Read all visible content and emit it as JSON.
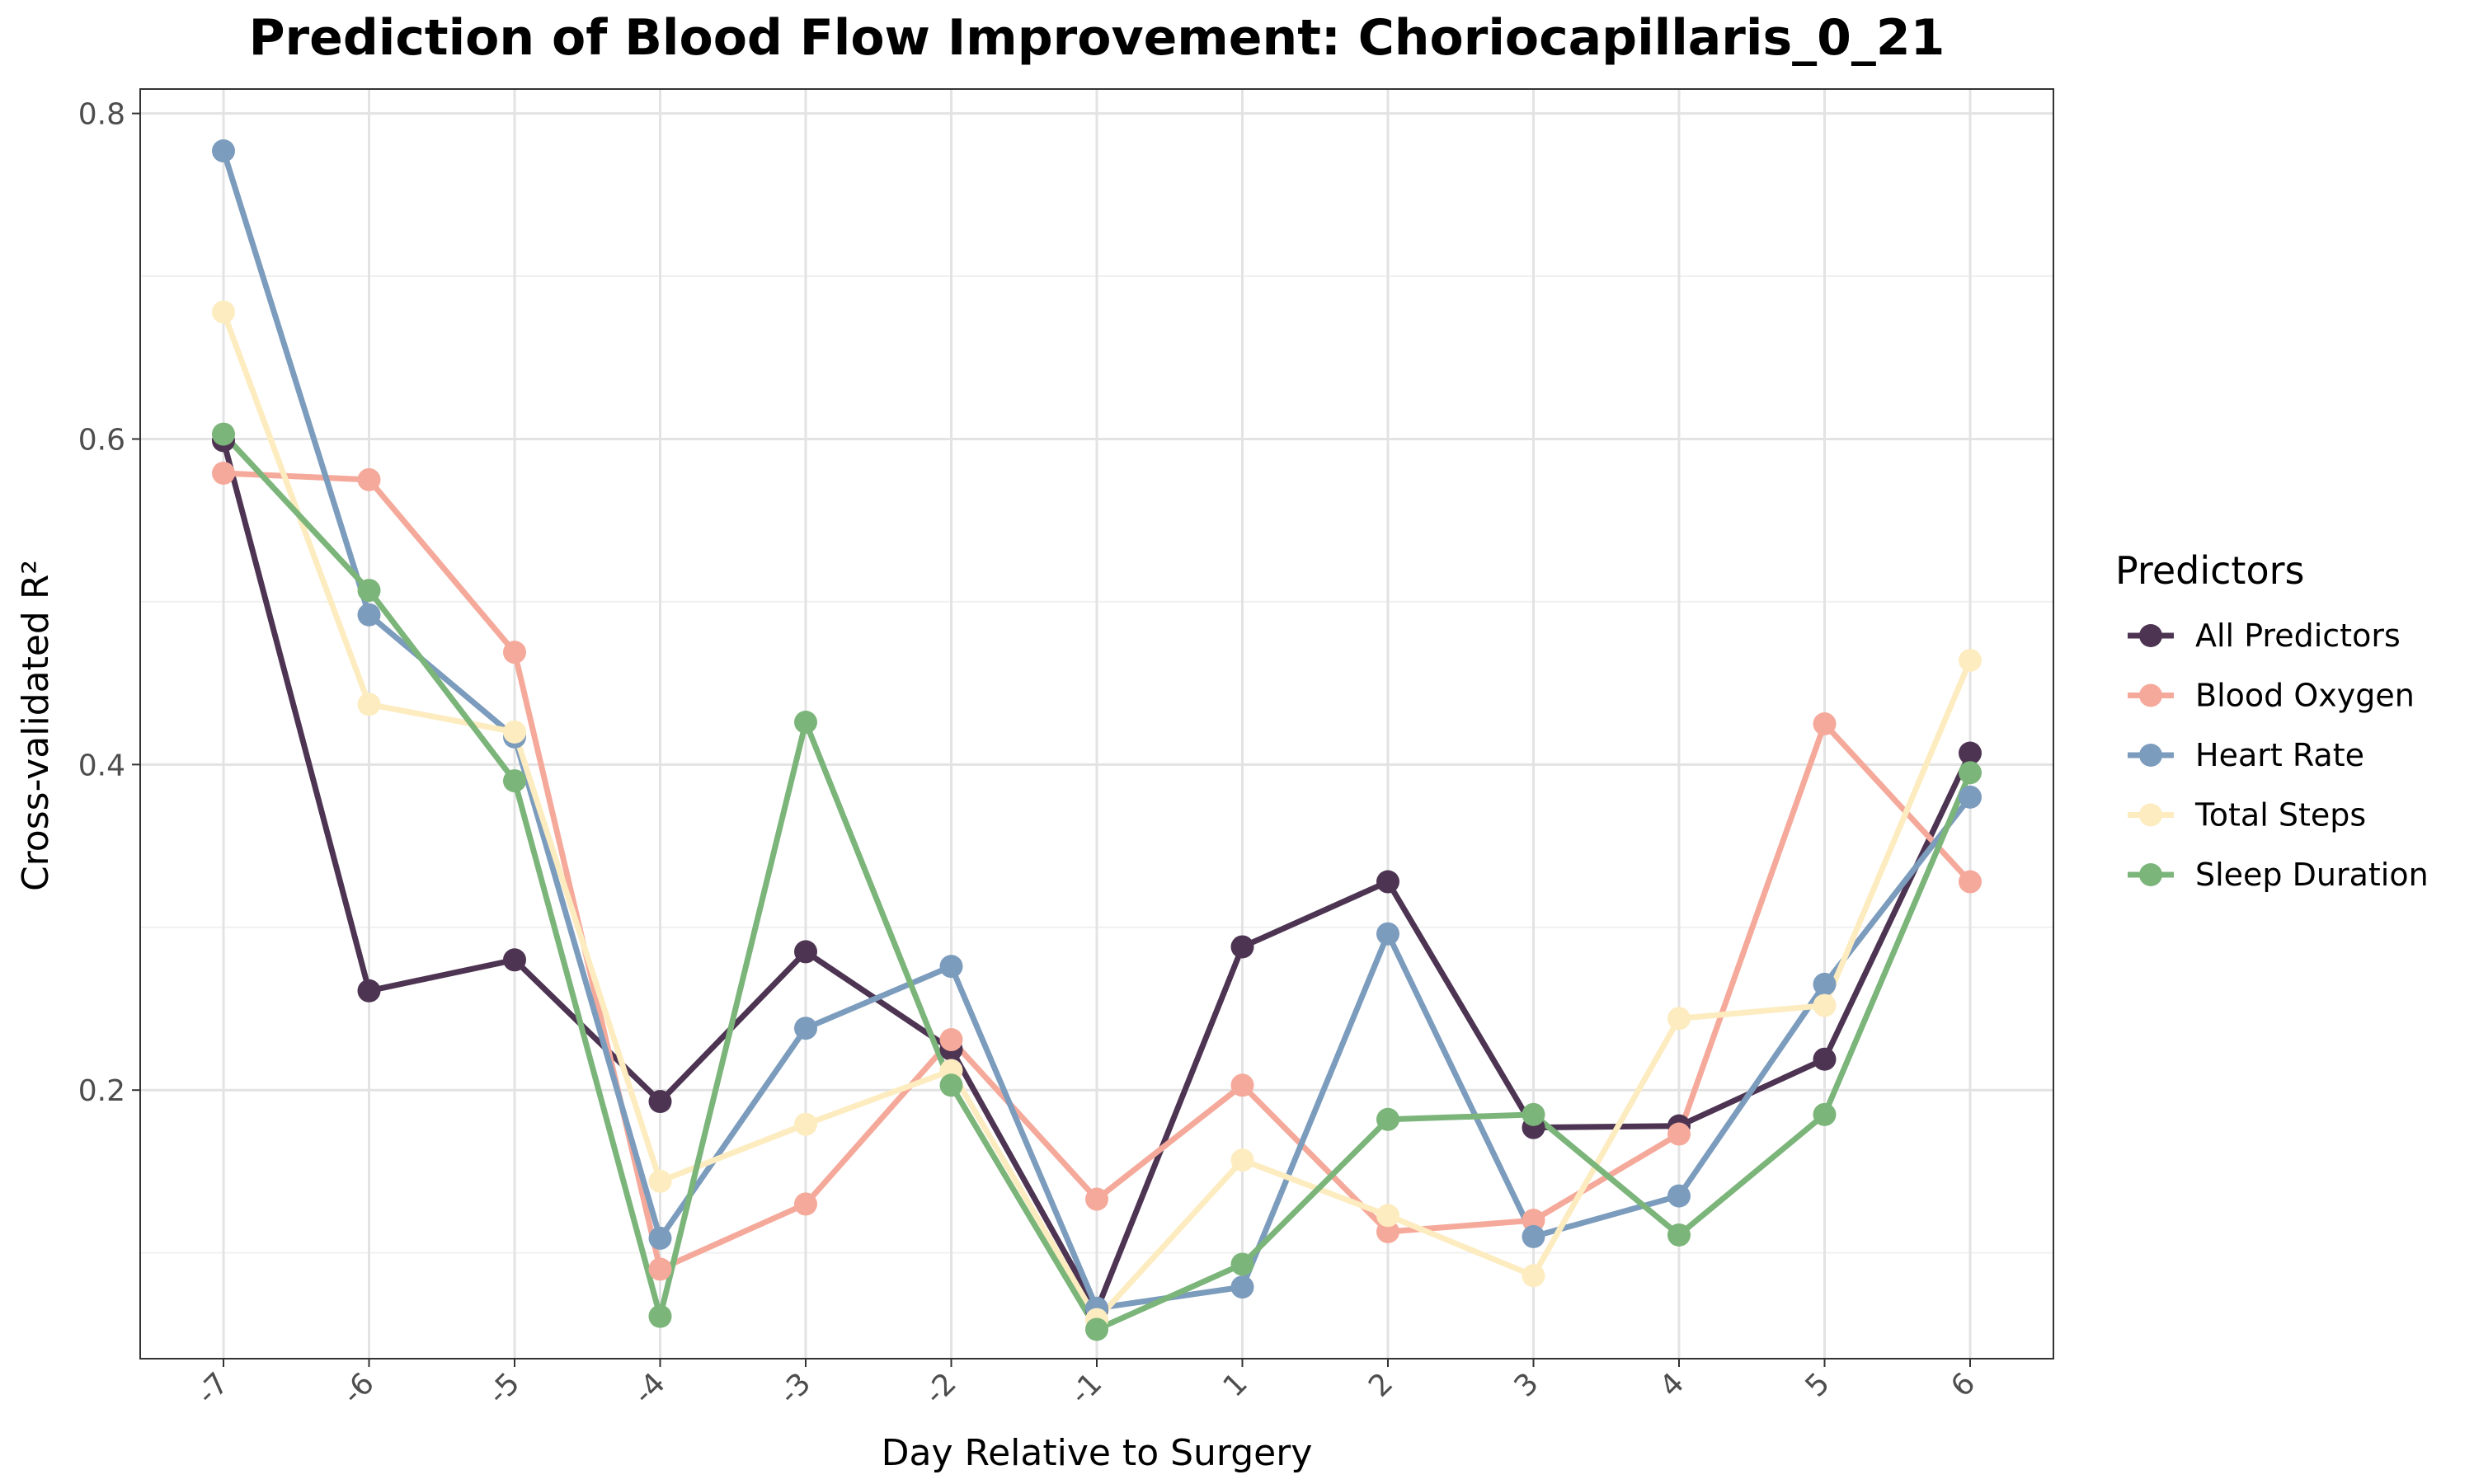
{
  "chart_data": {
    "type": "line",
    "title": "Prediction of Blood Flow Improvement: Choriocapillaris_0_21",
    "xlabel": "Day Relative to Surgery",
    "ylabel": "Cross-validated R²",
    "categories": [
      "-7",
      "-6",
      "-5",
      "-4",
      "-3",
      "-2",
      "-1",
      "1",
      "2",
      "3",
      "4",
      "5",
      "6"
    ],
    "yticks": [
      0.2,
      0.4,
      0.6,
      0.8
    ],
    "ytick_labels": [
      "0.2",
      "0.4",
      "0.6",
      "0.8"
    ],
    "ylim": [
      0.035,
      0.815
    ],
    "grid": true,
    "legend_title": "Predictors",
    "legend_position": "right",
    "series": [
      {
        "name": "All Predictors",
        "color": "#4d3452",
        "values": [
          0.599,
          0.261,
          0.28,
          0.193,
          0.285,
          0.225,
          0.065,
          0.288,
          0.328,
          0.177,
          0.178,
          0.219,
          0.407
        ]
      },
      {
        "name": "Blood Oxygen",
        "color": "#f5a99a",
        "values": [
          0.579,
          0.575,
          0.469,
          0.09,
          0.13,
          0.231,
          0.133,
          0.203,
          0.113,
          0.12,
          0.173,
          0.425,
          0.328
        ]
      },
      {
        "name": "Heart Rate",
        "color": "#7c9cbd",
        "values": [
          0.777,
          0.492,
          0.417,
          0.109,
          0.238,
          0.276,
          0.066,
          0.079,
          0.296,
          0.11,
          0.135,
          0.265,
          0.38
        ]
      },
      {
        "name": "Total Steps",
        "color": "#fdecc0",
        "values": [
          0.678,
          0.437,
          0.42,
          0.144,
          0.179,
          0.212,
          0.059,
          0.157,
          0.123,
          0.086,
          0.244,
          0.252,
          0.464
        ]
      },
      {
        "name": "Sleep Duration",
        "color": "#7bb57a",
        "values": [
          0.603,
          0.507,
          0.39,
          0.061,
          0.426,
          0.203,
          0.053,
          0.093,
          0.182,
          0.185,
          0.111,
          0.185,
          0.395
        ]
      }
    ]
  }
}
